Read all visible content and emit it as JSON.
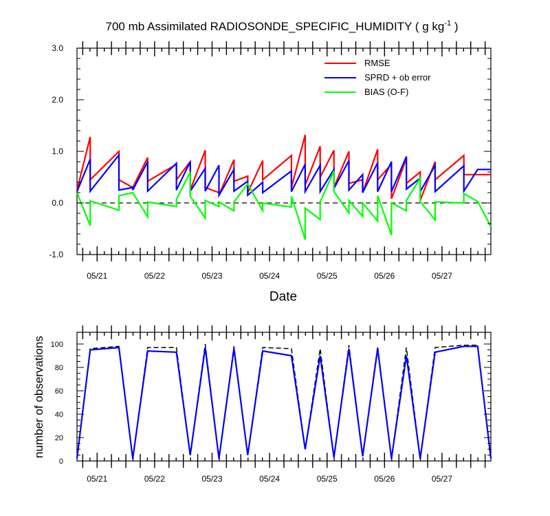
{
  "title": {
    "main": "700 mb Assimilated RADIOSONDE_SPECIFIC_HUMIDITY ( g kg",
    "sup": "-1",
    "tail": " )"
  },
  "chart_data": [
    {
      "type": "line",
      "title": "700 mb Assimilated RADIOSONDE_SPECIFIC_HUMIDITY ( g kg-1 )",
      "xlabel": "Date",
      "ylabel": "",
      "xlim": [
        20.65,
        27.85
      ],
      "ylim": [
        -1.0,
        3.0
      ],
      "yticks": [
        -1.0,
        0.0,
        1.0,
        2.0,
        3.0
      ],
      "ytick_labels": [
        "-1.0",
        "0.0",
        "1.0",
        "2.0",
        "3.0"
      ],
      "xticks": [
        21,
        22,
        23,
        24,
        25,
        26,
        27
      ],
      "xtick_labels": [
        "05/21",
        "05/22",
        "05/23",
        "05/24",
        "05/25",
        "05/26",
        "05/27"
      ],
      "legend_position": "top-right",
      "zero_line": "dashed",
      "series": [
        {
          "name": "RMSE",
          "color": "#ff0000",
          "points": [
            [
              20.65,
              0.25
            ],
            [
              20.88,
              1.28
            ],
            [
              20.88,
              0.45
            ],
            [
              21.38,
              1.0
            ],
            [
              21.38,
              0.45
            ],
            [
              21.62,
              0.3
            ],
            [
              21.62,
              0.3
            ],
            [
              21.88,
              0.88
            ],
            [
              21.88,
              0.42
            ],
            [
              22.38,
              0.75
            ],
            [
              22.38,
              0.45
            ],
            [
              22.62,
              0.8
            ],
            [
              22.62,
              0.25
            ],
            [
              22.88,
              1.02
            ],
            [
              22.88,
              0.3
            ],
            [
              23.12,
              0.2
            ],
            [
              23.12,
              0.15
            ],
            [
              23.38,
              0.84
            ],
            [
              23.38,
              0.42
            ],
            [
              23.62,
              0.52
            ],
            [
              23.62,
              0.2
            ],
            [
              23.88,
              0.82
            ],
            [
              23.88,
              0.45
            ],
            [
              24.38,
              0.92
            ],
            [
              24.38,
              0.3
            ],
            [
              24.62,
              1.32
            ],
            [
              24.62,
              0.35
            ],
            [
              24.88,
              1.1
            ],
            [
              24.88,
              0.5
            ],
            [
              25.12,
              1.02
            ],
            [
              25.12,
              0.3
            ],
            [
              25.38,
              1.0
            ],
            [
              25.38,
              0.38
            ],
            [
              25.62,
              0.45
            ],
            [
              25.62,
              0.2
            ],
            [
              25.88,
              1.04
            ],
            [
              25.88,
              0.45
            ],
            [
              26.12,
              0.75
            ],
            [
              26.12,
              0.08
            ],
            [
              26.38,
              0.86
            ],
            [
              26.38,
              0.38
            ],
            [
              26.62,
              0.6
            ],
            [
              26.62,
              0.05
            ],
            [
              26.88,
              0.8
            ],
            [
              26.88,
              0.45
            ],
            [
              27.38,
              0.92
            ],
            [
              27.38,
              0.55
            ],
            [
              27.62,
              0.55
            ],
            [
              27.62,
              0.55
            ],
            [
              27.85,
              0.55
            ]
          ]
        },
        {
          "name": "SPRD + ob error",
          "color": "#0000ff",
          "points": [
            [
              20.65,
              0.22
            ],
            [
              20.88,
              0.85
            ],
            [
              20.88,
              0.23
            ],
            [
              21.38,
              0.93
            ],
            [
              21.38,
              0.25
            ],
            [
              21.62,
              0.3
            ],
            [
              21.62,
              0.25
            ],
            [
              21.88,
              0.8
            ],
            [
              21.88,
              0.23
            ],
            [
              22.38,
              0.77
            ],
            [
              22.38,
              0.25
            ],
            [
              22.62,
              0.8
            ],
            [
              22.62,
              0.23
            ],
            [
              22.88,
              0.67
            ],
            [
              22.88,
              0.23
            ],
            [
              23.12,
              0.73
            ],
            [
              23.12,
              0.15
            ],
            [
              23.38,
              0.65
            ],
            [
              23.38,
              0.23
            ],
            [
              23.62,
              0.42
            ],
            [
              23.62,
              0.15
            ],
            [
              23.88,
              0.4
            ],
            [
              23.88,
              0.2
            ],
            [
              24.38,
              0.62
            ],
            [
              24.38,
              0.22
            ],
            [
              24.62,
              0.75
            ],
            [
              24.62,
              0.22
            ],
            [
              24.88,
              0.73
            ],
            [
              24.88,
              0.22
            ],
            [
              25.12,
              0.65
            ],
            [
              25.12,
              0.28
            ],
            [
              25.38,
              0.82
            ],
            [
              25.38,
              0.25
            ],
            [
              25.62,
              0.55
            ],
            [
              25.62,
              0.2
            ],
            [
              25.88,
              0.78
            ],
            [
              25.88,
              0.22
            ],
            [
              26.12,
              0.8
            ],
            [
              26.12,
              0.22
            ],
            [
              26.38,
              0.9
            ],
            [
              26.38,
              0.27
            ],
            [
              26.62,
              0.48
            ],
            [
              26.62,
              0.22
            ],
            [
              26.88,
              0.73
            ],
            [
              26.88,
              0.22
            ],
            [
              27.38,
              0.72
            ],
            [
              27.38,
              0.23
            ],
            [
              27.62,
              0.65
            ],
            [
              27.62,
              0.65
            ],
            [
              27.85,
              0.65
            ]
          ]
        },
        {
          "name": "BIAS (O-F)",
          "color": "#00ff00",
          "points": [
            [
              20.65,
              0.2
            ],
            [
              20.88,
              -0.44
            ],
            [
              20.88,
              0.04
            ],
            [
              21.38,
              -0.14
            ],
            [
              21.38,
              0.14
            ],
            [
              21.62,
              0.2
            ],
            [
              21.62,
              0.2
            ],
            [
              21.88,
              -0.27
            ],
            [
              21.88,
              0.02
            ],
            [
              22.38,
              -0.07
            ],
            [
              22.38,
              0.07
            ],
            [
              22.62,
              0.6
            ],
            [
              22.62,
              0.13
            ],
            [
              22.88,
              -0.29
            ],
            [
              22.88,
              0.05
            ],
            [
              23.12,
              -0.07
            ],
            [
              23.12,
              0.02
            ],
            [
              23.38,
              -0.15
            ],
            [
              23.38,
              0.02
            ],
            [
              23.62,
              0.37
            ],
            [
              23.62,
              0.37
            ],
            [
              23.88,
              -0.15
            ],
            [
              23.88,
              0.0
            ],
            [
              24.38,
              -0.08
            ],
            [
              24.38,
              0.13
            ],
            [
              24.62,
              -0.71
            ],
            [
              24.62,
              -0.1
            ],
            [
              24.88,
              -0.32
            ],
            [
              24.88,
              0.02
            ],
            [
              25.12,
              0.62
            ],
            [
              25.12,
              0.22
            ],
            [
              25.38,
              -0.19
            ],
            [
              25.38,
              0.05
            ],
            [
              25.62,
              -0.26
            ],
            [
              25.62,
              0.0
            ],
            [
              25.88,
              -0.35
            ],
            [
              25.88,
              0.14
            ],
            [
              26.12,
              -0.62
            ],
            [
              26.12,
              0.0
            ],
            [
              26.38,
              -0.15
            ],
            [
              26.38,
              0.05
            ],
            [
              26.62,
              0.48
            ],
            [
              26.62,
              0.03
            ],
            [
              26.88,
              -0.33
            ],
            [
              26.88,
              0.02
            ],
            [
              27.38,
              0.0
            ],
            [
              27.38,
              0.18
            ],
            [
              27.62,
              0.03
            ],
            [
              27.62,
              0.03
            ],
            [
              27.85,
              -0.46
            ]
          ]
        }
      ]
    },
    {
      "type": "line",
      "title": "",
      "xlabel": "",
      "ylabel": "number of observations",
      "xlim": [
        20.65,
        27.85
      ],
      "ylim": [
        0,
        110
      ],
      "yticks": [
        0,
        20,
        40,
        60,
        80,
        100
      ],
      "ytick_labels": [
        "0",
        "20",
        "40",
        "60",
        "80",
        "100"
      ],
      "xticks": [
        21,
        22,
        23,
        24,
        25,
        26,
        27
      ],
      "xtick_labels": [
        "05/21",
        "05/22",
        "05/23",
        "05/24",
        "05/25",
        "05/26",
        "05/27"
      ],
      "series": [
        {
          "color": "#000000",
          "dash": "dashed",
          "points": [
            [
              20.65,
              2
            ],
            [
              20.88,
              96
            ],
            [
              21.38,
              98
            ],
            [
              21.62,
              2
            ],
            [
              21.88,
              97
            ],
            [
              22.38,
              97
            ],
            [
              22.62,
              5
            ],
            [
              22.88,
              100
            ],
            [
              23.12,
              2
            ],
            [
              23.38,
              98
            ],
            [
              23.62,
              5
            ],
            [
              23.88,
              97
            ],
            [
              24.38,
              96
            ],
            [
              24.62,
              10
            ],
            [
              24.88,
              96
            ],
            [
              25.12,
              3
            ],
            [
              25.38,
              99
            ],
            [
              25.62,
              4
            ],
            [
              25.88,
              98
            ],
            [
              26.12,
              2
            ],
            [
              26.38,
              97
            ],
            [
              26.62,
              2
            ],
            [
              26.88,
              97
            ],
            [
              27.38,
              99
            ],
            [
              27.62,
              99
            ],
            [
              27.85,
              2
            ]
          ]
        },
        {
          "color": "#0000ff",
          "points": [
            [
              20.65,
              2
            ],
            [
              20.88,
              95
            ],
            [
              21.38,
              97
            ],
            [
              21.62,
              2
            ],
            [
              21.88,
              94
            ],
            [
              22.38,
              93
            ],
            [
              22.62,
              5
            ],
            [
              22.88,
              97
            ],
            [
              23.12,
              2
            ],
            [
              23.38,
              96
            ],
            [
              23.62,
              5
            ],
            [
              23.88,
              94
            ],
            [
              24.38,
              90
            ],
            [
              24.62,
              10
            ],
            [
              24.88,
              90
            ],
            [
              25.12,
              3
            ],
            [
              25.38,
              96
            ],
            [
              25.62,
              4
            ],
            [
              25.88,
              96
            ],
            [
              26.12,
              2
            ],
            [
              26.38,
              90
            ],
            [
              26.62,
              2
            ],
            [
              26.88,
              93
            ],
            [
              27.38,
              98
            ],
            [
              27.62,
              98
            ],
            [
              27.85,
              2
            ]
          ]
        }
      ]
    }
  ]
}
